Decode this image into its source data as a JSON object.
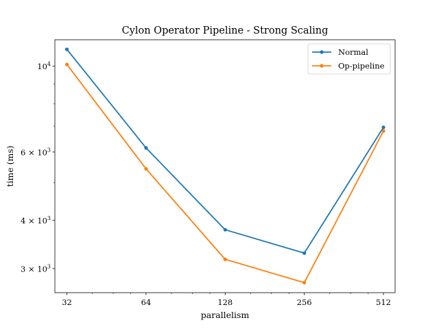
{
  "chart_data": {
    "type": "line",
    "title": "Cylon Operator Pipeline - Strong Scaling",
    "xlabel": "parallelism",
    "ylabel": "time (ms)",
    "x_scale": "log2",
    "y_scale": "log10",
    "xlim": [
      28.8,
      567
    ],
    "ylim": [
      2600,
      11700
    ],
    "x": [
      32,
      64,
      128,
      256,
      512
    ],
    "x_tick_labels": [
      "32",
      "64",
      "128",
      "256",
      "512"
    ],
    "y_ticks": [
      {
        "value": 3000,
        "mantissa": "3",
        "base": "10",
        "exp": "3"
      },
      {
        "value": 4000,
        "mantissa": "4",
        "base": "10",
        "exp": "3"
      },
      {
        "value": 6000,
        "mantissa": "6",
        "base": "10",
        "exp": "3"
      },
      {
        "value": 10000,
        "mantissa": "",
        "base": "10",
        "exp": "4"
      }
    ],
    "series": [
      {
        "name": "Normal",
        "color": "#1f77b4",
        "values": [
          11050,
          6150,
          3780,
          3290,
          6950
        ]
      },
      {
        "name": "Op-pipeline",
        "color": "#ff7f0e",
        "values": [
          10100,
          5430,
          3170,
          2760,
          6800
        ]
      }
    ],
    "grid": false,
    "legend": "top-right"
  }
}
